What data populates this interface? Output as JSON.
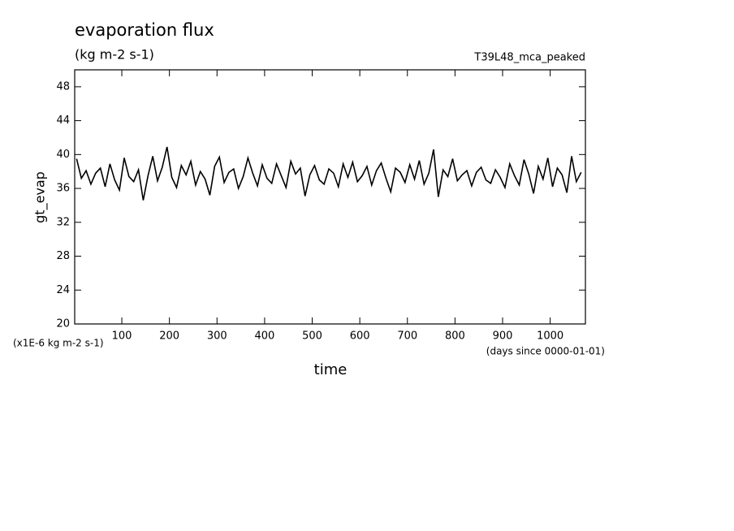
{
  "chart_data": {
    "type": "line",
    "title": "evaporation flux",
    "subtitle": "(kg m-2 s-1)",
    "run_label": "T39L48_mca_peaked",
    "y_label": "gt_evap",
    "y_unit": "(x1E-6 kg m-2 s-1)",
    "x_label": "time",
    "x_unit": "(days since 0000-01-01)",
    "xlim": [
      1,
      1074
    ],
    "ylim": [
      20,
      50
    ],
    "xticks": [
      100,
      200,
      300,
      400,
      500,
      600,
      700,
      800,
      900,
      1000
    ],
    "yticks": [
      20,
      24,
      28,
      32,
      36,
      40,
      44,
      48
    ],
    "x": [
      5,
      15,
      25,
      35,
      45,
      55,
      65,
      75,
      85,
      95,
      105,
      115,
      125,
      135,
      145,
      155,
      165,
      175,
      185,
      195,
      205,
      215,
      225,
      235,
      245,
      255,
      265,
      275,
      285,
      295,
      305,
      315,
      325,
      335,
      345,
      355,
      365,
      375,
      385,
      395,
      405,
      415,
      425,
      435,
      445,
      455,
      465,
      475,
      485,
      495,
      505,
      515,
      525,
      535,
      545,
      555,
      565,
      575,
      585,
      595,
      605,
      615,
      625,
      635,
      645,
      655,
      665,
      675,
      685,
      695,
      705,
      715,
      725,
      735,
      745,
      755,
      765,
      775,
      785,
      795,
      805,
      815,
      825,
      835,
      845,
      855,
      865,
      875,
      885,
      895,
      905,
      915,
      925,
      935,
      945,
      955,
      965,
      975,
      985,
      995,
      1005,
      1015,
      1025,
      1035,
      1045,
      1055,
      1065
    ],
    "series": [
      {
        "name": "gt_evap",
        "color": "#000000",
        "values": [
          39.5,
          37.2,
          38.1,
          36.5,
          37.8,
          38.4,
          36.2,
          38.9,
          37.0,
          35.8,
          39.6,
          37.4,
          36.8,
          38.2,
          34.6,
          37.5,
          39.8,
          36.9,
          38.5,
          40.9,
          37.3,
          36.1,
          38.7,
          37.6,
          39.2,
          36.4,
          38.0,
          37.1,
          35.2,
          38.6,
          39.7,
          36.7,
          37.9,
          38.3,
          36.0,
          37.4,
          39.6,
          37.8,
          36.3,
          38.8,
          37.2,
          36.6,
          38.9,
          37.5,
          36.1,
          39.2,
          37.7,
          38.4,
          35.1,
          37.6,
          38.7,
          37.0,
          36.5,
          38.3,
          37.8,
          36.2,
          38.9,
          37.3,
          39.1,
          36.8,
          37.5,
          38.6,
          36.4,
          38.1,
          39.0,
          37.2,
          35.6,
          38.4,
          37.9,
          36.7,
          38.8,
          37.1,
          39.3,
          36.5,
          37.8,
          40.6,
          35.0,
          38.2,
          37.4,
          39.5,
          36.9,
          37.6,
          38.1,
          36.3,
          37.9,
          38.5,
          37.0,
          36.6,
          38.2,
          37.3,
          36.1,
          38.9,
          37.5,
          36.4,
          39.4,
          37.7,
          35.4,
          38.6,
          37.1,
          39.6,
          36.2,
          38.4,
          37.6,
          35.5,
          39.8,
          36.8,
          37.9
        ]
      }
    ]
  }
}
